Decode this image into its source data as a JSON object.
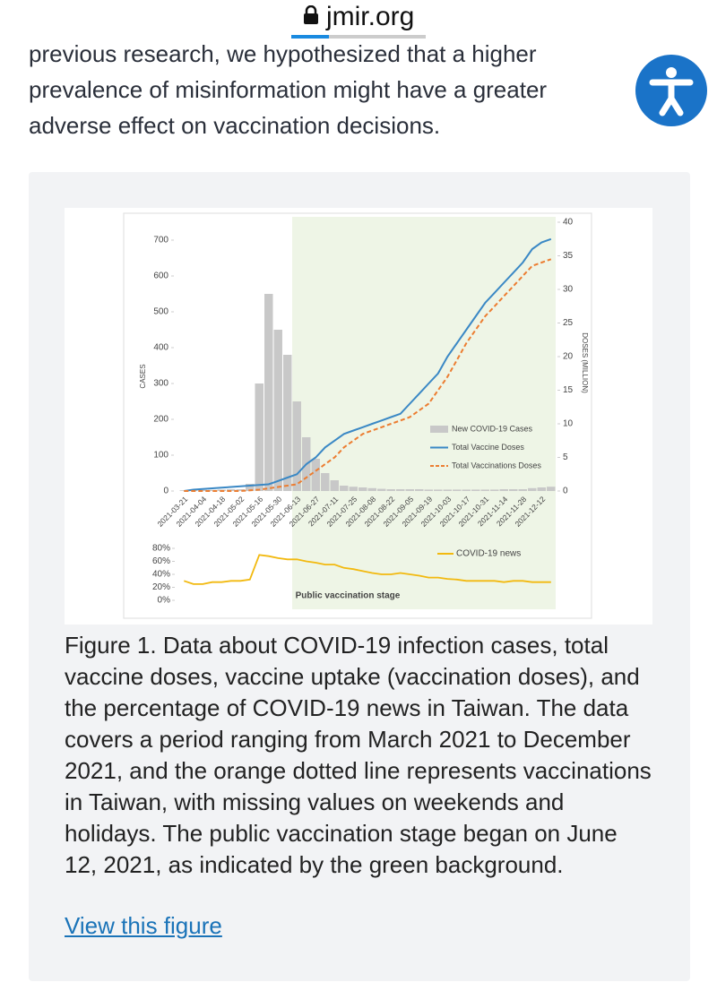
{
  "header": {
    "site": "jmir.org"
  },
  "article": {
    "paragraph": "previous research, we hypothesized that a higher prevalence of misinformation might have a greater adverse effect on vaccination decisions."
  },
  "chart_data": [
    {
      "type": "combo",
      "ylabel": "CASES",
      "y2label": "DOSES (MILLION)",
      "annotation": "Public vaccination stage",
      "categories": [
        "2021-03-21",
        null,
        "2021-04-04",
        null,
        "2021-04-18",
        null,
        "2021-05-02",
        null,
        "2021-05-16",
        null,
        "2021-05-30",
        null,
        "2021-06-13",
        null,
        "2021-06-27",
        null,
        "2021-07-11",
        null,
        "2021-07-25",
        null,
        "2021-08-08",
        null,
        "2021-08-22",
        null,
        "2021-09-05",
        null,
        "2021-09-19",
        null,
        "2021-10-03",
        null,
        "2021-10-17",
        null,
        "2021-10-31",
        null,
        "2021-11-14",
        null,
        "2021-11-28",
        null,
        "2021-12-12",
        null
      ],
      "series": [
        {
          "name": "New COVID-19 Cases",
          "kind": "bar",
          "color": "#c8c8c8",
          "values": [
            2,
            2,
            3,
            3,
            4,
            5,
            5,
            20,
            300,
            550,
            450,
            380,
            250,
            150,
            90,
            50,
            30,
            15,
            12,
            10,
            8,
            6,
            5,
            5,
            5,
            5,
            4,
            4,
            4,
            4,
            4,
            4,
            4,
            4,
            5,
            5,
            5,
            8,
            10,
            12
          ]
        },
        {
          "name": "Total Vaccine Doses",
          "kind": "line",
          "axis": "y2",
          "color": "#3a88c5",
          "dashed": false,
          "values": [
            0,
            0.2,
            0.3,
            0.4,
            0.5,
            0.6,
            0.7,
            0.8,
            0.9,
            1,
            1.5,
            2,
            2.5,
            4,
            5,
            6.5,
            7.5,
            8.5,
            9,
            9.5,
            10,
            10.5,
            11,
            11.5,
            13,
            14.5,
            16,
            17.5,
            20,
            22,
            24,
            26,
            28,
            29.5,
            31,
            32.5,
            34,
            36,
            37,
            37.5
          ]
        },
        {
          "name": "Total Vaccinations Doses",
          "kind": "line",
          "axis": "y2",
          "color": "#ec7d31",
          "dashed": true,
          "values": [
            0,
            0,
            0,
            0,
            0,
            0,
            0,
            0.1,
            0.2,
            0.4,
            0.6,
            0.8,
            1,
            2,
            3,
            4,
            5,
            6.5,
            7.5,
            8.5,
            9,
            9.5,
            10,
            10.5,
            11,
            12,
            13,
            15,
            17,
            19.5,
            22,
            24,
            26,
            27.5,
            29,
            30.5,
            32,
            33.5,
            34,
            34.5
          ]
        }
      ],
      "ylim": [
        0,
        750
      ],
      "yticks": [
        0,
        100,
        200,
        300,
        400,
        500,
        600,
        700
      ],
      "y2lim": [
        0,
        40
      ],
      "y2ticks": [
        0,
        5,
        10,
        15,
        20,
        25,
        30,
        35,
        40
      ],
      "legend": "lower right",
      "grid": false
    },
    {
      "type": "line",
      "series": [
        {
          "name": "COVID-19 news",
          "color": "#f2b90f",
          "values": [
            30,
            25,
            25,
            28,
            28,
            30,
            30,
            32,
            70,
            68,
            65,
            63,
            63,
            60,
            58,
            55,
            55,
            50,
            48,
            45,
            42,
            40,
            40,
            42,
            40,
            38,
            35,
            35,
            33,
            32,
            30,
            30,
            30,
            30,
            28,
            30,
            30,
            28,
            28,
            28
          ]
        }
      ],
      "ylim": [
        0,
        80
      ],
      "yticks": [
        {
          "value": 0,
          "label": "0%"
        },
        {
          "value": 20,
          "label": "20%"
        },
        {
          "value": 40,
          "label": "40%"
        },
        {
          "value": 60,
          "label": "60%"
        },
        {
          "value": 80,
          "label": "80%"
        }
      ],
      "legend": "upper right",
      "grid": false
    }
  ],
  "figure": {
    "caption": "Figure 1. Data about COVID-19 infection cases, total vaccine doses, vaccine uptake (vaccination doses), and the percentage of COVID-19 news in Taiwan. The data covers a period ranging from March 2021 to December 2021, and the orange dotted line represents vaccinations in Taiwan, with missing values on weekends and holidays. The public vaccination stage began on June 12, 2021, as indicated by the green background.",
    "link": "View this figure"
  }
}
